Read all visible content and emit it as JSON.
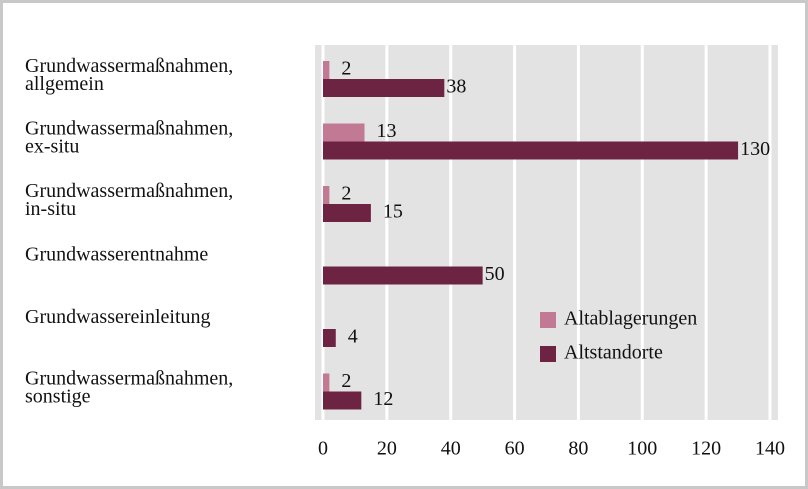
{
  "chart_data": {
    "type": "bar",
    "orientation": "horizontal",
    "categories": [
      [
        "Grundwassermaßnahmen,",
        "allgemein"
      ],
      [
        "Grundwassermaßnahmen,",
        "ex-situ"
      ],
      [
        "Grundwassermaßnahmen,",
        "in-situ"
      ],
      [
        "Grundwasserentnahme"
      ],
      [
        "Grundwassereinleitung"
      ],
      [
        "Grundwassermaßnahmen,",
        "sonstige"
      ]
    ],
    "series": [
      {
        "name": "Altablagerungen",
        "color": "#c27a94",
        "values": [
          2,
          13,
          2,
          null,
          null,
          2
        ]
      },
      {
        "name": "Altstandorte",
        "color": "#6d2443",
        "values": [
          38,
          130,
          15,
          50,
          4,
          12
        ]
      }
    ],
    "xlim": [
      0,
      140
    ],
    "xticks": [
      0,
      20,
      40,
      60,
      80,
      100,
      120,
      140
    ],
    "grid": true,
    "legend": "right"
  }
}
